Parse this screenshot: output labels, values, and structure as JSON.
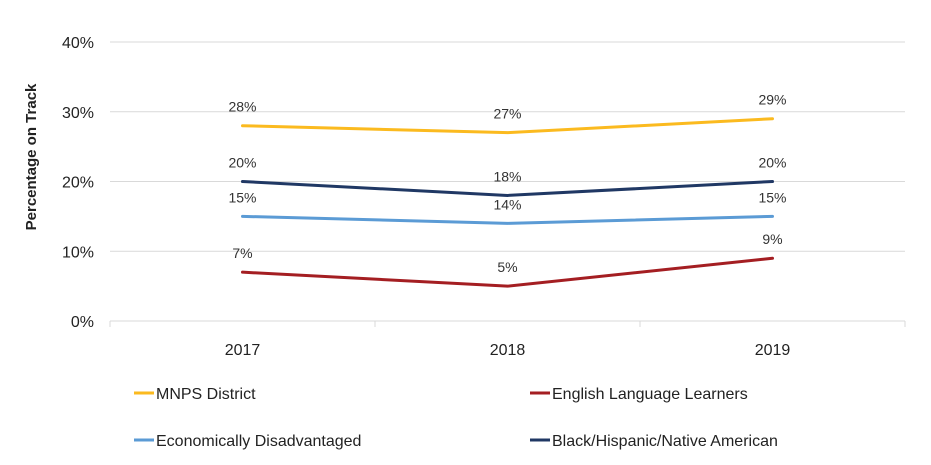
{
  "chart_data": {
    "type": "line",
    "categories": [
      "2017",
      "2018",
      "2019"
    ],
    "series": [
      {
        "name": "MNPS District",
        "values": [
          28,
          27,
          29
        ],
        "labels": [
          "28%",
          "27%",
          "29%"
        ],
        "color": "#FBBA1F"
      },
      {
        "name": "English Language Learners",
        "values": [
          7,
          5,
          9
        ],
        "labels": [
          "7%",
          "5%",
          "9%"
        ],
        "color": "#A41E22"
      },
      {
        "name": "Economically Disadvantaged",
        "values": [
          15,
          14,
          15
        ],
        "labels": [
          "15%",
          "14%",
          "15%"
        ],
        "color": "#5B9BD5"
      },
      {
        "name": "Black/Hispanic/Native American",
        "values": [
          20,
          18,
          20
        ],
        "labels": [
          "20%",
          "18%",
          "20%"
        ],
        "color": "#203864"
      }
    ],
    "ylabel": "Percentage on Track",
    "xlabel": "",
    "ylim": [
      0,
      40
    ],
    "yticks": [
      0,
      10,
      20,
      30,
      40
    ],
    "ytick_labels": [
      "0%",
      "10%",
      "20%",
      "30%",
      "40%"
    ],
    "grid": true,
    "legend_position": "bottom"
  }
}
